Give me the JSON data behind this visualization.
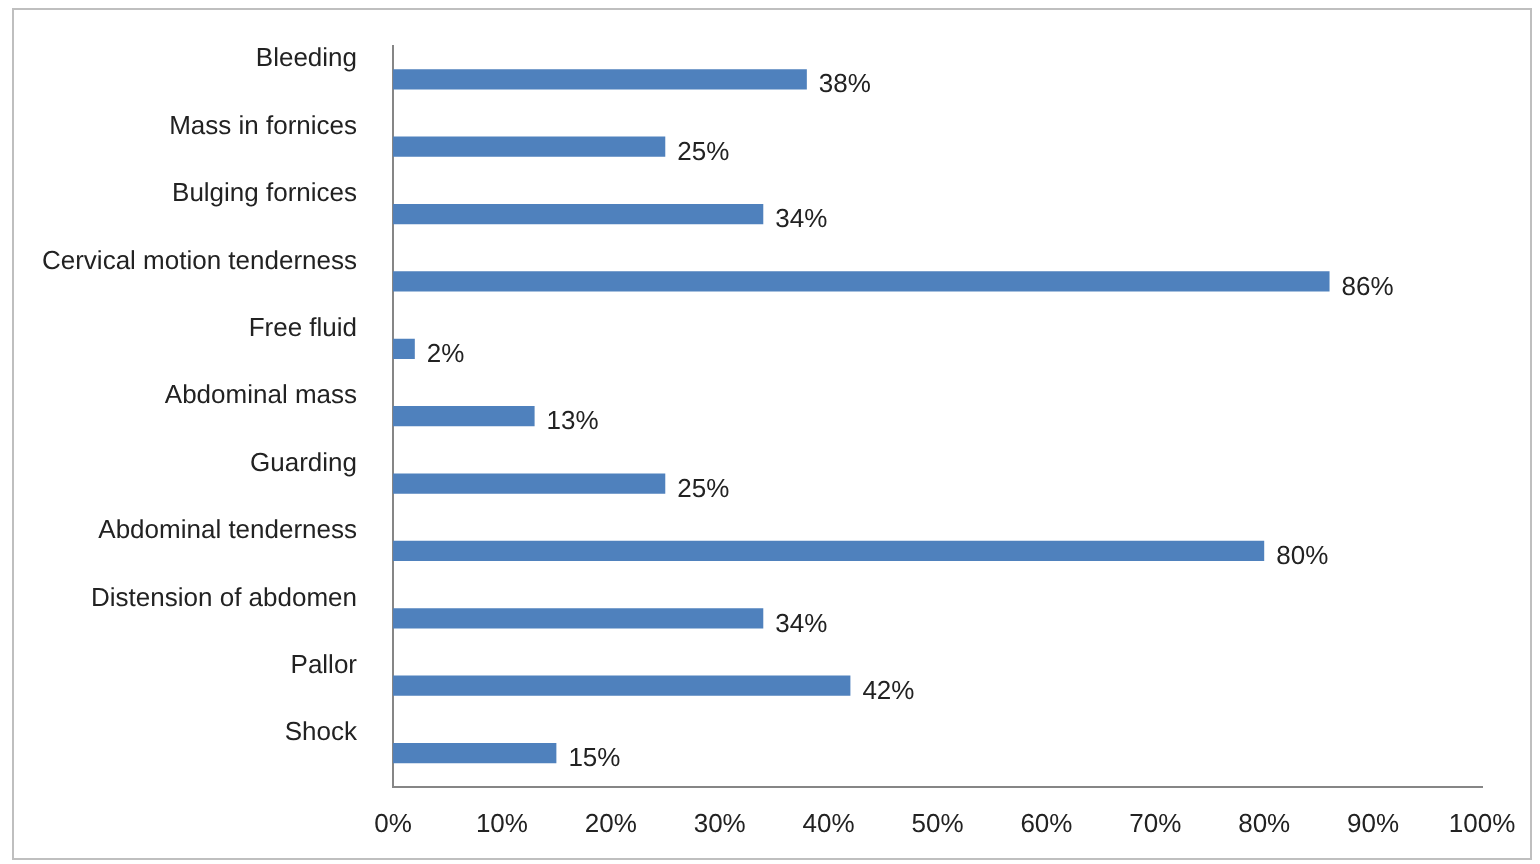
{
  "chart_data": {
    "type": "bar",
    "orientation": "horizontal",
    "categories": [
      "Bleeding",
      "Mass in fornices",
      "Bulging fornices",
      "Cervical motion tenderness",
      "Free fluid",
      "Abdominal mass",
      "Guarding",
      "Abdominal tenderness",
      "Distension of abdomen",
      "Pallor",
      "Shock"
    ],
    "values": [
      38,
      25,
      34,
      86,
      2,
      13,
      25,
      80,
      34,
      42,
      15
    ],
    "value_labels": [
      "38%",
      "25%",
      "34%",
      "86%",
      "2%",
      "13%",
      "25%",
      "80%",
      "34%",
      "42%",
      "15%"
    ],
    "color": "#4f81bd",
    "xlim": [
      0,
      100
    ],
    "xticks": [
      {
        "value": 0,
        "label": "0%"
      },
      {
        "value": 10,
        "label": "10%"
      },
      {
        "value": 20,
        "label": "20%"
      },
      {
        "value": 30,
        "label": "30%"
      },
      {
        "value": 40,
        "label": "40%"
      },
      {
        "value": 50,
        "label": "50%"
      },
      {
        "value": 60,
        "label": "60%"
      },
      {
        "value": 70,
        "label": "70%"
      },
      {
        "value": 80,
        "label": "80%"
      },
      {
        "value": 90,
        "label": "90%"
      },
      {
        "value": 100,
        "label": "100%"
      }
    ],
    "grid": false,
    "legend": false
  }
}
